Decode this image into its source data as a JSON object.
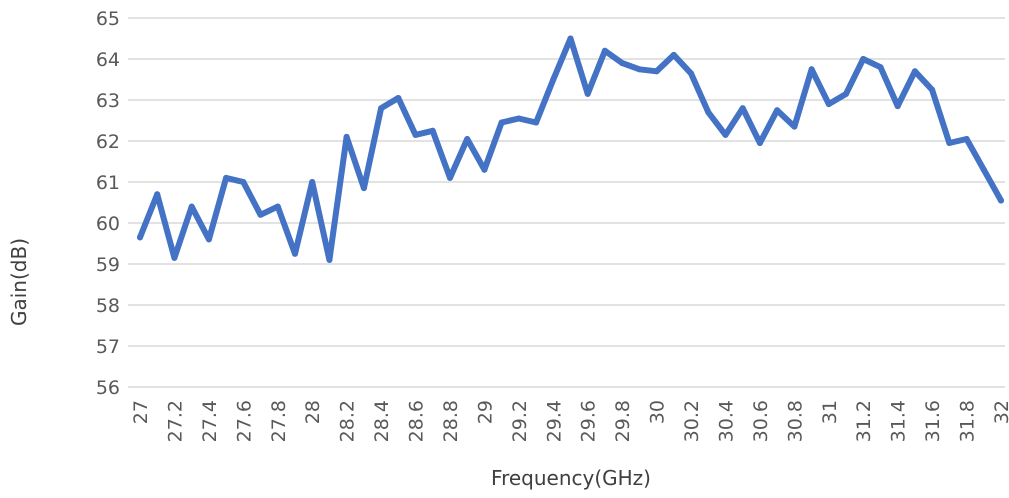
{
  "chart_data": {
    "type": "line",
    "title": "",
    "xlabel": "Frequency(GHz)",
    "ylabel": "Gain(dB)",
    "ylim": [
      56,
      65
    ],
    "yticks": [
      "56",
      "57",
      "58",
      "59",
      "60",
      "61",
      "62",
      "63",
      "64",
      "65"
    ],
    "xticks": [
      "27",
      "27.2",
      "27.4",
      "27.6",
      "27.8",
      "28",
      "28.2",
      "28.4",
      "28.6",
      "28.8",
      "29",
      "29.2",
      "29.4",
      "29.6",
      "29.8",
      "30",
      "30.2",
      "30.4",
      "30.6",
      "30.8",
      "31",
      "31.2",
      "31.4",
      "31.6",
      "31.8",
      "32"
    ],
    "grid": true,
    "legend": "none",
    "line_color": "#4472c4",
    "grid_color": "#d9d9d9",
    "series": [
      {
        "x": [
          27.0,
          27.1,
          27.2,
          27.3,
          27.4,
          27.5,
          27.6,
          27.7,
          27.8,
          27.9,
          28.0,
          28.1,
          28.2,
          28.3,
          28.4,
          28.5,
          28.6,
          28.7,
          28.8,
          28.9,
          29.0,
          29.1,
          29.2,
          29.3,
          29.4,
          29.5,
          29.6,
          29.7,
          29.8,
          29.9,
          30.0,
          30.1,
          30.2,
          30.3,
          30.4,
          30.5,
          30.6,
          30.7,
          30.8,
          30.9,
          31.0,
          31.1,
          31.2,
          31.3,
          31.4,
          31.5,
          31.6,
          31.7,
          31.8,
          31.9,
          32.0
        ],
        "values": [
          59.65,
          60.7,
          59.15,
          60.4,
          59.6,
          61.1,
          61.0,
          60.2,
          60.4,
          59.25,
          61.0,
          59.1,
          62.1,
          60.85,
          62.8,
          63.05,
          62.15,
          62.25,
          61.1,
          62.05,
          61.3,
          62.45,
          62.55,
          62.45,
          63.5,
          64.5,
          63.15,
          64.2,
          63.9,
          63.75,
          63.7,
          64.1,
          63.65,
          62.7,
          62.15,
          62.8,
          61.95,
          62.75,
          62.35,
          63.75,
          62.9,
          63.15,
          64.0,
          63.8,
          62.85,
          63.7,
          63.25,
          61.95,
          62.05,
          61.3,
          60.55
        ]
      }
    ]
  }
}
